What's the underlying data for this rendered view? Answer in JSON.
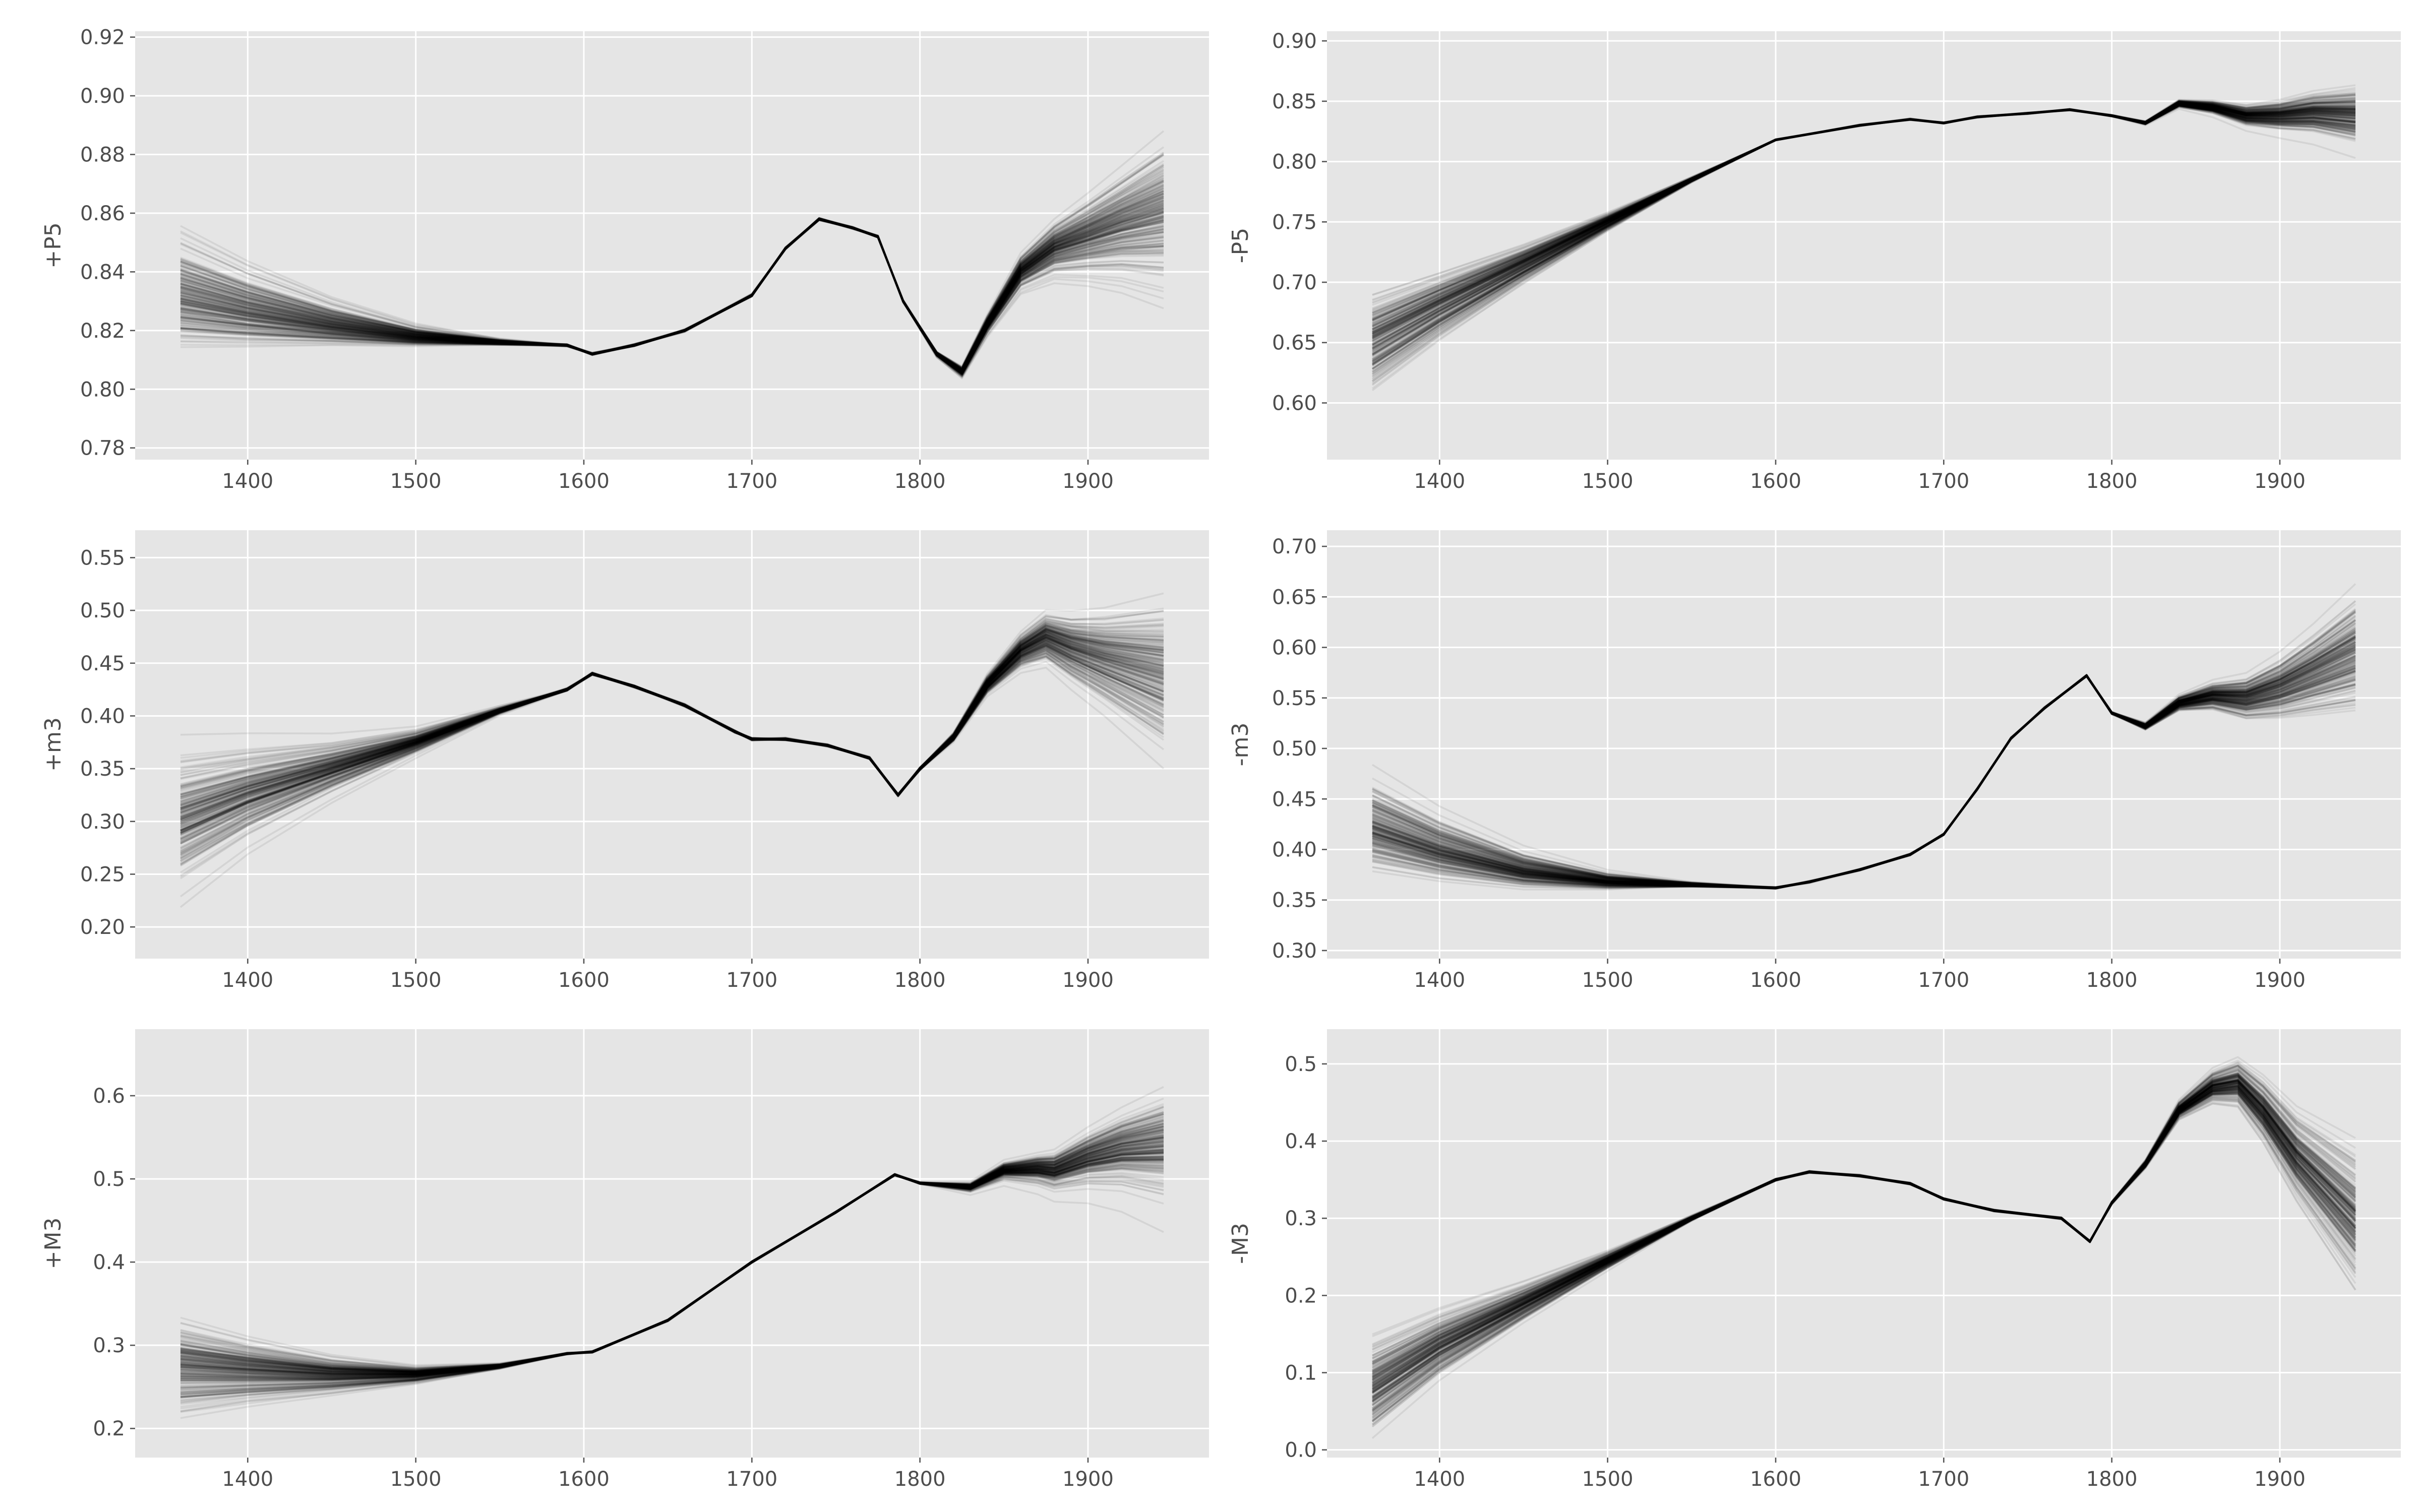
{
  "chart_data": [
    {
      "type": "line",
      "ylabel": "+P5",
      "xlim": [
        1333,
        1972
      ],
      "ylim": [
        0.776,
        0.922
      ],
      "xticks": [
        1400,
        1500,
        1600,
        1700,
        1800,
        1900
      ],
      "xtick_labels": [
        "1400",
        "1500",
        "1600",
        "1700",
        "1800",
        "1900"
      ],
      "yticks": [
        0.78,
        0.8,
        0.82,
        0.84,
        0.86,
        0.88,
        0.9,
        0.92
      ],
      "ytick_labels": [
        "0.78",
        "0.80",
        "0.82",
        "0.84",
        "0.86",
        "0.88",
        "0.90",
        "0.92"
      ],
      "ensemble": {
        "count": 240,
        "spread_start": 0.015,
        "spread_end": 0.02
      },
      "x": [
        1360,
        1400,
        1450,
        1500,
        1550,
        1590,
        1605,
        1630,
        1660,
        1700,
        1720,
        1740,
        1760,
        1775,
        1790,
        1810,
        1825,
        1840,
        1860,
        1880,
        1900,
        1920,
        1945
      ],
      "values": [
        0.832,
        0.827,
        0.822,
        0.818,
        0.816,
        0.815,
        0.812,
        0.815,
        0.82,
        0.832,
        0.848,
        0.858,
        0.855,
        0.852,
        0.83,
        0.812,
        0.806,
        0.822,
        0.84,
        0.848,
        0.852,
        0.856,
        0.86
      ],
      "grid": true
    },
    {
      "type": "line",
      "ylabel": "-P5",
      "xlim": [
        1333,
        1972
      ],
      "ylim": [
        0.553,
        0.908
      ],
      "xticks": [
        1400,
        1500,
        1600,
        1700,
        1800,
        1900
      ],
      "xtick_labels": [
        "1400",
        "1500",
        "1600",
        "1700",
        "1800",
        "1900"
      ],
      "yticks": [
        0.6,
        0.65,
        0.7,
        0.75,
        0.8,
        0.85,
        0.9
      ],
      "ytick_labels": [
        "0.60",
        "0.65",
        "0.70",
        "0.75",
        "0.80",
        "0.85",
        "0.90"
      ],
      "ensemble": {
        "count": 240,
        "spread_start": 0.035,
        "spread_end": 0.02
      },
      "x": [
        1360,
        1400,
        1450,
        1500,
        1550,
        1600,
        1650,
        1680,
        1700,
        1720,
        1750,
        1775,
        1800,
        1820,
        1840,
        1860,
        1880,
        1900,
        1920,
        1945
      ],
      "values": [
        0.65,
        0.68,
        0.715,
        0.75,
        0.785,
        0.818,
        0.83,
        0.835,
        0.832,
        0.837,
        0.84,
        0.843,
        0.838,
        0.832,
        0.848,
        0.845,
        0.838,
        0.838,
        0.84,
        0.838
      ],
      "grid": true
    },
    {
      "type": "line",
      "ylabel": "+m3",
      "xlim": [
        1333,
        1972
      ],
      "ylim": [
        0.17,
        0.576
      ],
      "xticks": [
        1400,
        1500,
        1600,
        1700,
        1800,
        1900
      ],
      "xtick_labels": [
        "1400",
        "1500",
        "1600",
        "1700",
        "1800",
        "1900"
      ],
      "yticks": [
        0.2,
        0.25,
        0.3,
        0.35,
        0.4,
        0.45,
        0.5,
        0.55
      ],
      "ytick_labels": [
        "0.20",
        "0.25",
        "0.30",
        "0.35",
        "0.40",
        "0.45",
        "0.50",
        "0.55"
      ],
      "ensemble": {
        "count": 240,
        "spread_start": 0.05,
        "spread_end": 0.06
      },
      "x": [
        1360,
        1400,
        1450,
        1500,
        1550,
        1590,
        1605,
        1630,
        1660,
        1690,
        1700,
        1720,
        1745,
        1770,
        1787,
        1800,
        1820,
        1840,
        1860,
        1875,
        1890,
        1910,
        1945
      ],
      "values": [
        0.3,
        0.325,
        0.35,
        0.375,
        0.405,
        0.425,
        0.44,
        0.428,
        0.41,
        0.385,
        0.378,
        0.378,
        0.372,
        0.36,
        0.325,
        0.35,
        0.38,
        0.43,
        0.462,
        0.475,
        0.465,
        0.455,
        0.44
      ],
      "grid": true
    },
    {
      "type": "line",
      "ylabel": "-m3",
      "xlim": [
        1333,
        1972
      ],
      "ylim": [
        0.292,
        0.716
      ],
      "xticks": [
        1400,
        1500,
        1600,
        1700,
        1800,
        1900
      ],
      "xtick_labels": [
        "1400",
        "1500",
        "1600",
        "1700",
        "1800",
        "1900"
      ],
      "yticks": [
        0.3,
        0.35,
        0.4,
        0.45,
        0.5,
        0.55,
        0.6,
        0.65,
        0.7
      ],
      "ytick_labels": [
        "0.30",
        "0.35",
        "0.40",
        "0.45",
        "0.50",
        "0.55",
        "0.60",
        "0.65",
        "0.70"
      ],
      "ensemble": {
        "count": 240,
        "spread_start": 0.035,
        "spread_end": 0.05
      },
      "x": [
        1360,
        1400,
        1450,
        1500,
        1550,
        1600,
        1620,
        1650,
        1680,
        1700,
        1720,
        1740,
        1760,
        1785,
        1800,
        1820,
        1840,
        1860,
        1880,
        1900,
        1920,
        1945
      ],
      "values": [
        0.42,
        0.398,
        0.378,
        0.368,
        0.365,
        0.362,
        0.368,
        0.38,
        0.395,
        0.415,
        0.46,
        0.51,
        0.54,
        0.572,
        0.535,
        0.522,
        0.545,
        0.552,
        0.55,
        0.56,
        0.575,
        0.595
      ],
      "grid": true
    },
    {
      "type": "line",
      "ylabel": "+M3",
      "xlim": [
        1333,
        1972
      ],
      "ylim": [
        0.165,
        0.68
      ],
      "xticks": [
        1400,
        1500,
        1600,
        1700,
        1800,
        1900
      ],
      "xtick_labels": [
        "1400",
        "1500",
        "1600",
        "1700",
        "1800",
        "1900"
      ],
      "yticks": [
        0.2,
        0.3,
        0.4,
        0.5,
        0.6
      ],
      "ytick_labels": [
        "0.2",
        "0.3",
        "0.4",
        "0.5",
        "0.6"
      ],
      "ensemble": {
        "count": 240,
        "spread_start": 0.045,
        "spread_end": 0.05
      },
      "x": [
        1360,
        1400,
        1450,
        1500,
        1550,
        1590,
        1605,
        1650,
        1700,
        1750,
        1785,
        1800,
        1830,
        1850,
        1870,
        1880,
        1900,
        1920,
        1945
      ],
      "values": [
        0.275,
        0.27,
        0.265,
        0.265,
        0.275,
        0.29,
        0.292,
        0.33,
        0.4,
        0.46,
        0.505,
        0.495,
        0.49,
        0.51,
        0.512,
        0.51,
        0.525,
        0.535,
        0.54
      ],
      "grid": true
    },
    {
      "type": "line",
      "ylabel": "-M3",
      "xlim": [
        1333,
        1972
      ],
      "ylim": [
        -0.01,
        0.545
      ],
      "xticks": [
        1400,
        1500,
        1600,
        1700,
        1800,
        1900
      ],
      "xtick_labels": [
        "1400",
        "1500",
        "1600",
        "1700",
        "1800",
        "1900"
      ],
      "yticks": [
        0.0,
        0.1,
        0.2,
        0.3,
        0.4,
        0.5
      ],
      "ytick_labels": [
        "0.0",
        "0.1",
        "0.2",
        "0.3",
        "0.4",
        "0.5"
      ],
      "ensemble": {
        "count": 240,
        "spread_start": 0.05,
        "spread_end": 0.07
      },
      "x": [
        1360,
        1400,
        1450,
        1500,
        1550,
        1600,
        1620,
        1650,
        1680,
        1700,
        1730,
        1770,
        1787,
        1800,
        1820,
        1840,
        1860,
        1875,
        1890,
        1910,
        1945
      ],
      "values": [
        0.08,
        0.135,
        0.19,
        0.245,
        0.3,
        0.35,
        0.36,
        0.355,
        0.345,
        0.325,
        0.31,
        0.3,
        0.27,
        0.32,
        0.37,
        0.44,
        0.47,
        0.475,
        0.44,
        0.38,
        0.3
      ],
      "grid": true
    }
  ]
}
